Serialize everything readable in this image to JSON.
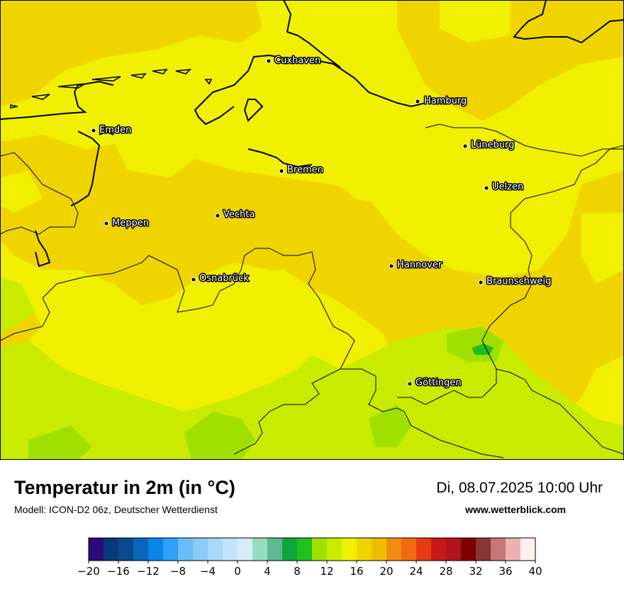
{
  "map": {
    "background_color": "#f0f000",
    "region_colors": {
      "warm": "#f0d400",
      "mild": "#f0f000",
      "cool": "#c8eb00",
      "cooler": "#a0e000",
      "coolest": "#22bb22"
    },
    "coastline_color": "#000000",
    "cities": [
      {
        "name": "Cuxhaven"
      },
      {
        "name": "Hamburg"
      },
      {
        "name": "Emden"
      },
      {
        "name": "Lüneburg"
      },
      {
        "name": "Bremen"
      },
      {
        "name": "Uelzen"
      },
      {
        "name": "Vechta"
      },
      {
        "name": "Meppen"
      },
      {
        "name": "Hannover"
      },
      {
        "name": "Osnabrück"
      },
      {
        "name": "Braunschweig"
      },
      {
        "name": "Göttingen"
      }
    ]
  },
  "footer": {
    "title": "Temperatur in 2m (in °C)",
    "subtitle": "Modell: ICON-D2 06z, Deutscher Wetterdienst",
    "datetime": "Di, 08.07.2025 10:00 Uhr",
    "site": "www.wetterblick.com"
  },
  "colorbar": {
    "min": -20,
    "max": 40,
    "step": 2,
    "tick_labels": [
      "−20",
      "−16",
      "−12",
      "−8",
      "−4",
      "0",
      "4",
      "8",
      "12",
      "16",
      "20",
      "24",
      "28",
      "32",
      "36",
      "40"
    ],
    "colors": [
      "#2d0a7a",
      "#063a7a",
      "#0a4a8c",
      "#0a66bd",
      "#0a84e6",
      "#2ea0f5",
      "#6abcf7",
      "#8ccaf8",
      "#a8d8fa",
      "#c4e4fb",
      "#d8ecfc",
      "#96dcc0",
      "#5fb88e",
      "#10a43c",
      "#22c01c",
      "#a0e000",
      "#c8eb00",
      "#f0f000",
      "#f0d400",
      "#f0bc00",
      "#f08c10",
      "#f06a10",
      "#e83a10",
      "#c81818",
      "#b01418",
      "#7e0000",
      "#8c3434",
      "#c47878",
      "#f0b0b0",
      "#fff0f0"
    ]
  }
}
